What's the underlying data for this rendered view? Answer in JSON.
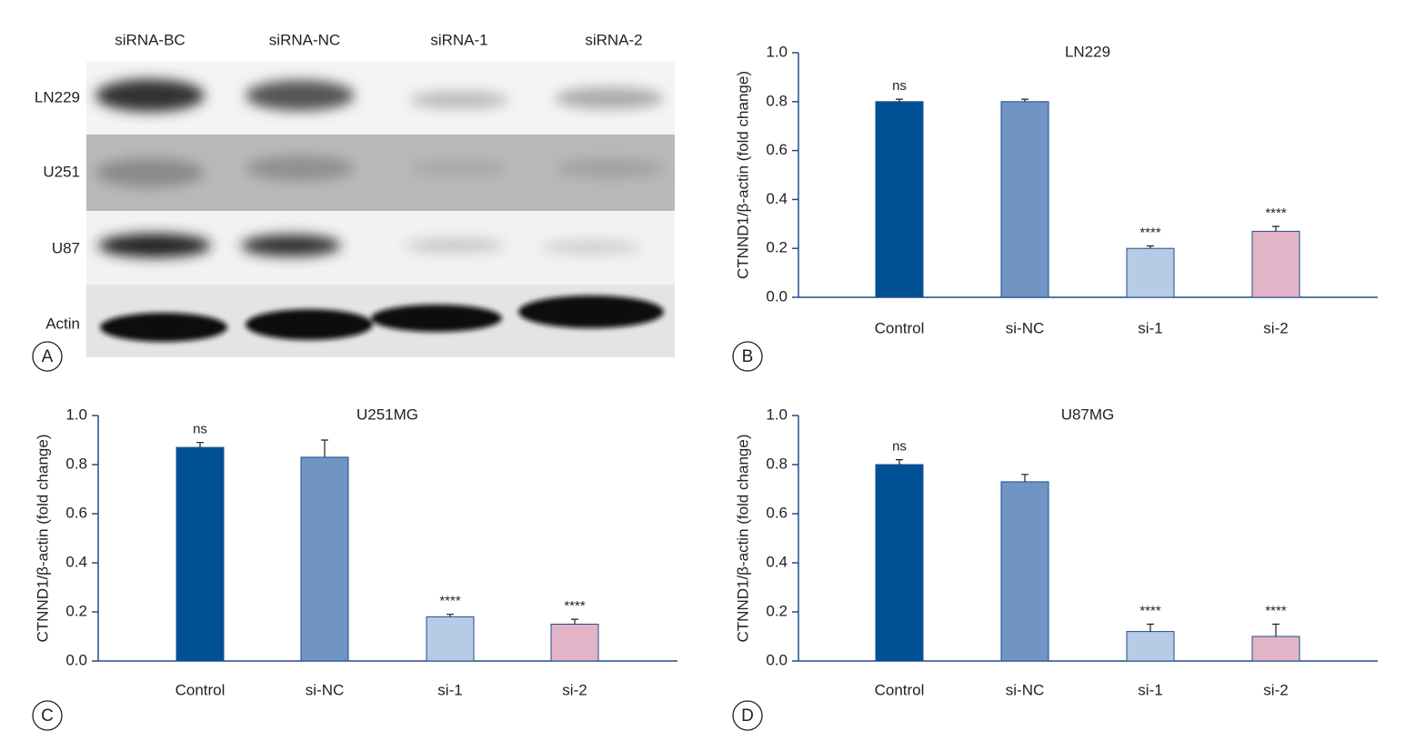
{
  "blot": {
    "columns": [
      "siRNA-BC",
      "siRNA-NC",
      "siRNA-1",
      "siRNA-2"
    ],
    "rows": [
      "LN229",
      "U251",
      "U87",
      "Actin"
    ],
    "panel_label": "A"
  },
  "chart_data": [
    {
      "type": "bar",
      "panel_label": "B",
      "title": "LN229",
      "ylabel": "CTNND1/β-actin (fold change)",
      "categories": [
        "Control",
        "si-NC",
        "si-1",
        "si-2"
      ],
      "values": [
        0.8,
        0.8,
        0.2,
        0.27
      ],
      "errors": [
        0.01,
        0.01,
        0.01,
        0.02
      ],
      "annotations": [
        "ns",
        null,
        "****",
        "****"
      ],
      "colors": [
        "#005096",
        "#7094c4",
        "#b7cbe6",
        "#e3b4c8"
      ],
      "ylim": [
        0,
        1
      ],
      "yticks": [
        {
          "value": 0,
          "label": "0.0"
        },
        0.2,
        0.4,
        0.6,
        0.8,
        {
          "value": 1,
          "label": "1.0"
        }
      ]
    },
    {
      "type": "bar",
      "panel_label": "C",
      "title": "U251MG",
      "ylabel": "CTNND1/β-actin (fold change)",
      "categories": [
        "Control",
        "si-NC",
        "si-1",
        "si-2"
      ],
      "values": [
        0.87,
        0.83,
        0.18,
        0.15
      ],
      "errors": [
        0.02,
        0.07,
        0.01,
        0.02
      ],
      "annotations": [
        "ns",
        null,
        "****",
        "****"
      ],
      "colors": [
        "#005096",
        "#7094c4",
        "#b7cbe6",
        "#e3b4c8"
      ],
      "ylim": [
        0,
        1
      ],
      "yticks": [
        {
          "value": 0,
          "label": "0.0"
        },
        0.2,
        0.4,
        0.6,
        0.8,
        {
          "value": 1,
          "label": "1.0"
        }
      ]
    },
    {
      "type": "bar",
      "panel_label": "D",
      "title": "U87MG",
      "ylabel": "CTNND1/β-actin (fold change)",
      "categories": [
        "Control",
        "si-NC",
        "si-1",
        "si-2"
      ],
      "values": [
        0.8,
        0.73,
        0.12,
        0.1
      ],
      "errors": [
        0.02,
        0.03,
        0.03,
        0.05
      ],
      "annotations": [
        "ns",
        null,
        "****",
        "****"
      ],
      "colors": [
        "#005096",
        "#7094c4",
        "#b7cbe6",
        "#e3b4c8"
      ],
      "ylim": [
        0,
        1
      ],
      "yticks": [
        {
          "value": 0,
          "label": "0.0"
        },
        0.2,
        0.4,
        0.6,
        0.8,
        {
          "value": 1,
          "label": "1.0"
        }
      ]
    }
  ]
}
